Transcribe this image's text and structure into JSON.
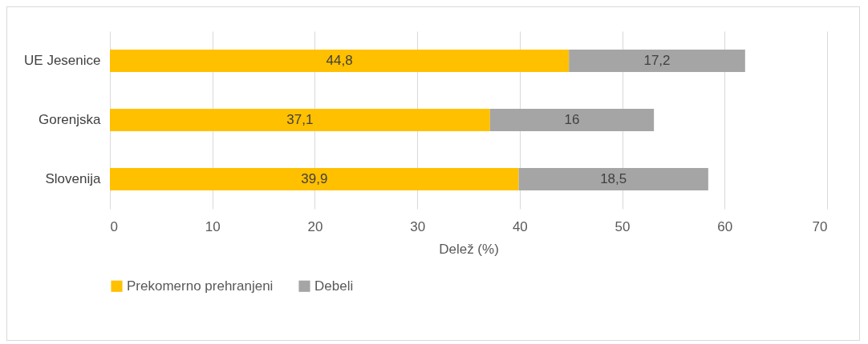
{
  "chart_data": {
    "type": "bar",
    "orientation": "horizontal",
    "stacked": true,
    "categories": [
      "UE Jesenice",
      "Gorenjska",
      "Slovenija"
    ],
    "series": [
      {
        "name": "Prekomerno prehranjeni",
        "color": "#ffc000",
        "values": [
          44.8,
          37.1,
          39.9
        ],
        "value_labels": [
          "44,8",
          "37,1",
          "39,9"
        ]
      },
      {
        "name": "Debeli",
        "color": "#a5a5a5",
        "values": [
          17.2,
          16,
          18.5
        ],
        "value_labels": [
          "17,2",
          "16",
          "18,5"
        ]
      }
    ],
    "xlabel": "Delež (%)",
    "xlim": [
      0,
      70
    ],
    "xticks": [
      0,
      10,
      20,
      30,
      40,
      50,
      60,
      70
    ],
    "grid": "x",
    "legend": "bottom"
  }
}
